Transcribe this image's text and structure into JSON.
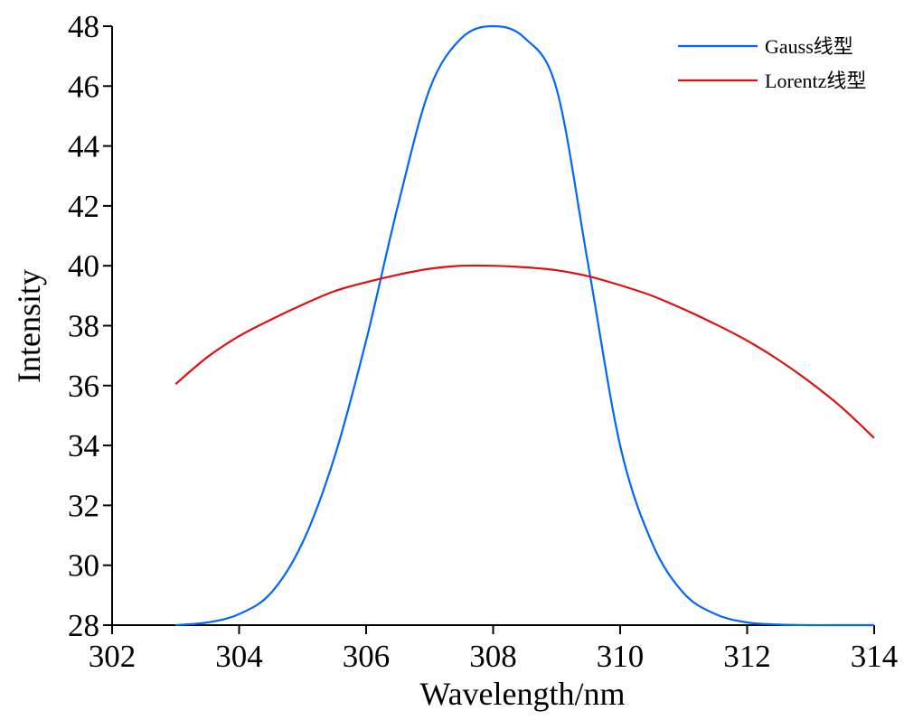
{
  "chart_data": {
    "type": "line",
    "xlabel": "Wavelength/nm",
    "ylabel": "Intensity",
    "xlim": [
      302,
      314
    ],
    "ylim": [
      28,
      48
    ],
    "x_ticks": [
      302,
      304,
      306,
      308,
      310,
      312,
      314
    ],
    "y_ticks": [
      28,
      30,
      32,
      34,
      36,
      38,
      40,
      42,
      44,
      46,
      48
    ],
    "grid": false,
    "legend_position": "top-right",
    "x": [
      303,
      303.5,
      304,
      304.5,
      305,
      305.5,
      306,
      306.5,
      307,
      307.5,
      308,
      308.5,
      309,
      309.5,
      310,
      310.5,
      311,
      311.5,
      312,
      312.5,
      313,
      313.5,
      314
    ],
    "series": [
      {
        "name": "Gauss线型",
        "color": "#0066ff",
        "values": [
          28.0,
          28.09,
          28.37,
          29.07,
          30.76,
          33.6,
          37.5,
          42.0,
          45.9,
          47.6,
          48.0,
          47.6,
          45.9,
          40.0,
          34.0,
          30.76,
          29.07,
          28.37,
          28.09,
          28.02,
          28.0,
          28.0,
          28.0
        ]
      },
      {
        "name": "Lorentz线型",
        "color": "#dd1111",
        "values": [
          36.05,
          36.95,
          37.65,
          38.2,
          38.7,
          39.15,
          39.45,
          39.7,
          39.9,
          40.0,
          40.0,
          39.95,
          39.85,
          39.65,
          39.35,
          39.0,
          38.55,
          38.05,
          37.5,
          36.85,
          36.1,
          35.25,
          34.25
        ]
      }
    ]
  }
}
